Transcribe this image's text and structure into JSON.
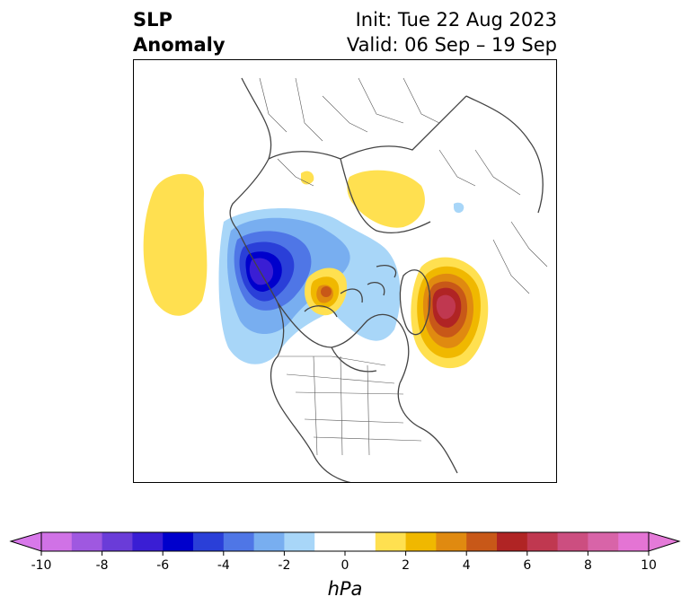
{
  "title": {
    "line1": "SLP",
    "line2": "Anomaly"
  },
  "init": {
    "line1": "Init: Tue 22 Aug 2023",
    "line2": "Valid: 06 Sep – 19 Sep"
  },
  "colorbar": {
    "unit": "hPa",
    "ticks": [
      "-10",
      "-8",
      "-6",
      "-4",
      "-2",
      "0",
      "2",
      "4",
      "6",
      "8",
      "10"
    ],
    "colors": [
      "#d072e6",
      "#9f58e0",
      "#6a3cd8",
      "#3a1ed4",
      "#0000cc",
      "#2a3fd8",
      "#4f76e6",
      "#78aef0",
      "#a8d6f8",
      "#ffffff",
      "#ffffff",
      "#ffe050",
      "#f0b800",
      "#e08a10",
      "#c85818",
      "#b02424",
      "#c03850",
      "#cc4e80",
      "#d864a8",
      "#e474d4"
    ],
    "under_color": "#d878ea",
    "over_color": "#e47ad8"
  },
  "map": {
    "projection": "polar stereographic",
    "features": [
      "coastlines",
      "country borders",
      "state borders"
    ]
  }
}
